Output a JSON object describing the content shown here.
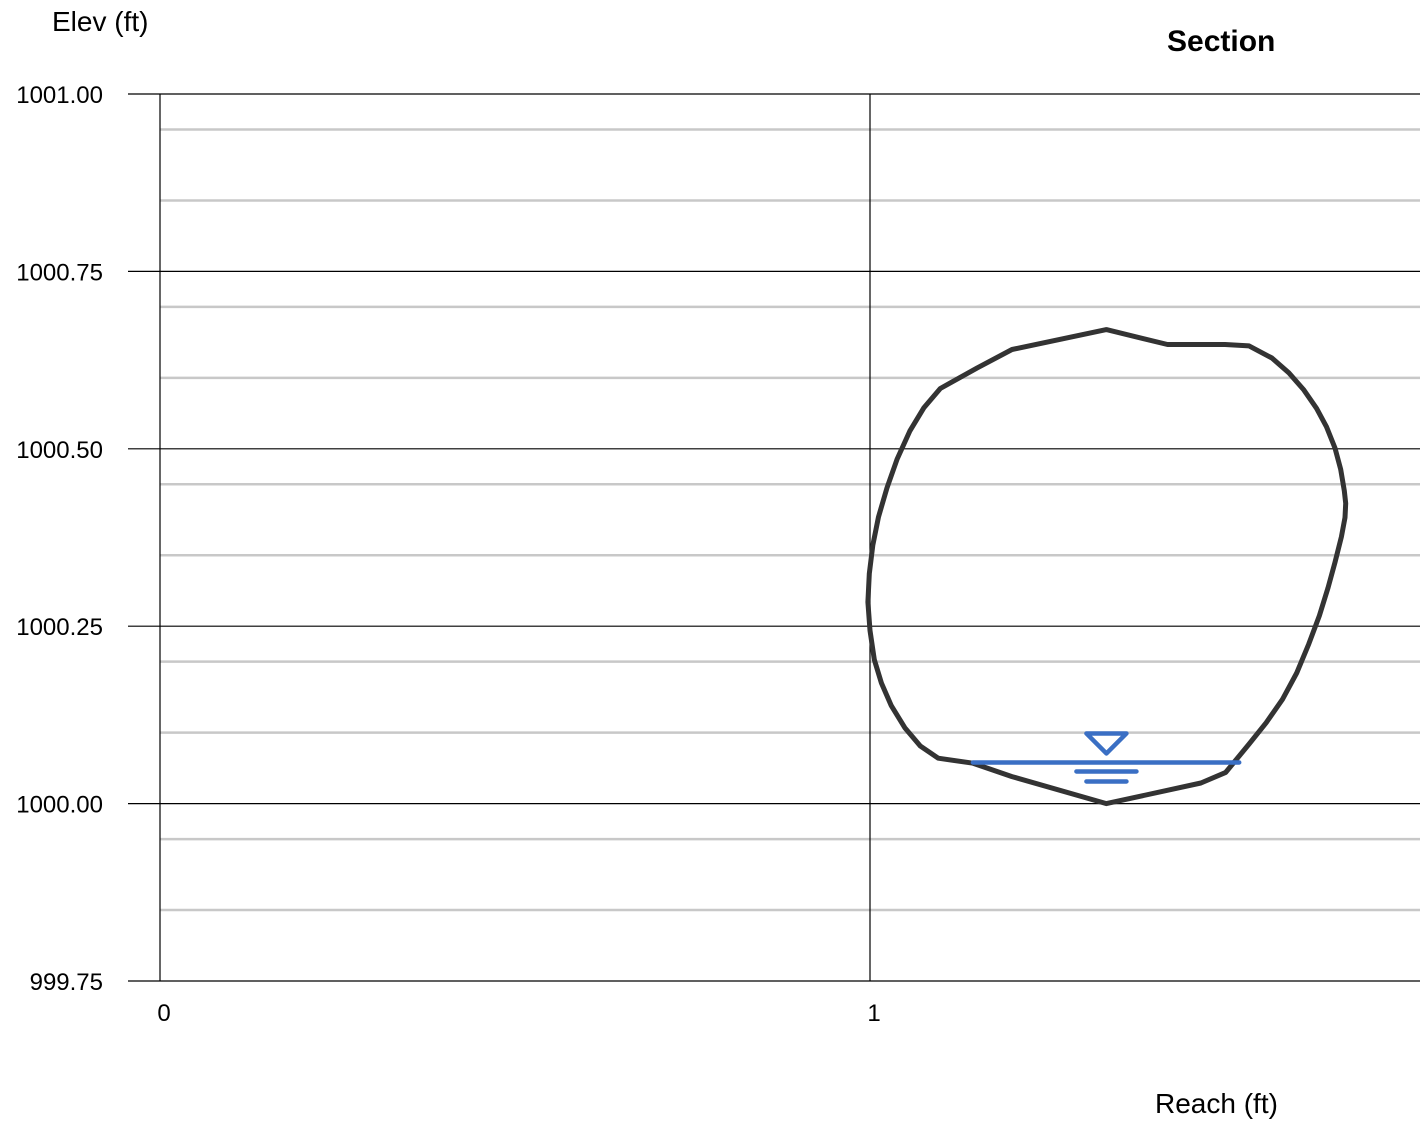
{
  "chart_data": {
    "type": "line",
    "title": "Section",
    "xlabel": "Reach (ft)",
    "ylabel": "Elev (ft)",
    "xlim": [
      0,
      1.77
    ],
    "ylim": [
      999.75,
      1001.0
    ],
    "x_ticks": [
      {
        "value": 0,
        "label": "0"
      },
      {
        "value": 1,
        "label": "1"
      }
    ],
    "y_ticks": [
      {
        "value": 1001.0,
        "label": "1001.00"
      },
      {
        "value": 1000.75,
        "label": "1000.75"
      },
      {
        "value": 1000.5,
        "label": "1000.50"
      },
      {
        "value": 1000.25,
        "label": "1000.25"
      },
      {
        "value": 1000.0,
        "label": "1000.00"
      },
      {
        "value": 999.75,
        "label": "999.75"
      }
    ],
    "minor_y_gridlines": [
      1000.95,
      1000.85,
      1000.7,
      1000.6,
      1000.45,
      1000.35,
      1000.2,
      1000.1,
      999.95,
      999.85
    ],
    "grid": true,
    "colors": {
      "pipe": "#333333",
      "water": "#3a6fc4",
      "major_grid": "#000000",
      "minor_grid": "#c8c8c8"
    },
    "series": [
      {
        "x": [
          1.333,
          1.466,
          1.501,
          1.534,
          1.558,
          1.581,
          1.601,
          1.618,
          1.633,
          1.645,
          1.655,
          1.664,
          1.669,
          1.67,
          1.668,
          1.663,
          1.655,
          1.643,
          1.629,
          1.611,
          1.59,
          1.566,
          1.534,
          1.5,
          1.462,
          1.419,
          1.333,
          1.2,
          1.151,
          1.099,
          1.076,
          1.056,
          1.038,
          1.024,
          1.012,
          1.004,
          0.999,
          0.997,
          1.0,
          1.006,
          1.016,
          1.03,
          1.049,
          1.071,
          1.096,
          1.145,
          1.2,
          1.333
        ],
        "y": [
          1000.0,
          1000.029,
          1000.044,
          1000.084,
          1000.114,
          1000.147,
          1000.184,
          1000.225,
          1000.265,
          1000.304,
          1000.34,
          1000.376,
          1000.403,
          1000.423,
          1000.441,
          1000.471,
          1000.501,
          1000.531,
          1000.557,
          1000.583,
          1000.607,
          1000.628,
          1000.645,
          1000.647,
          1000.647,
          1000.647,
          1000.668,
          1000.64,
          1000.614,
          1000.585,
          1000.558,
          1000.525,
          1000.485,
          1000.445,
          1000.404,
          1000.364,
          1000.324,
          1000.284,
          1000.244,
          1000.203,
          1000.17,
          1000.138,
          1000.107,
          1000.081,
          1000.064,
          1000.057,
          1000.038,
          1000.0
        ]
      },
      {
        "x": [
          1.145,
          1.52
        ],
        "y": [
          1000.058,
          1000.058
        ]
      }
    ]
  }
}
